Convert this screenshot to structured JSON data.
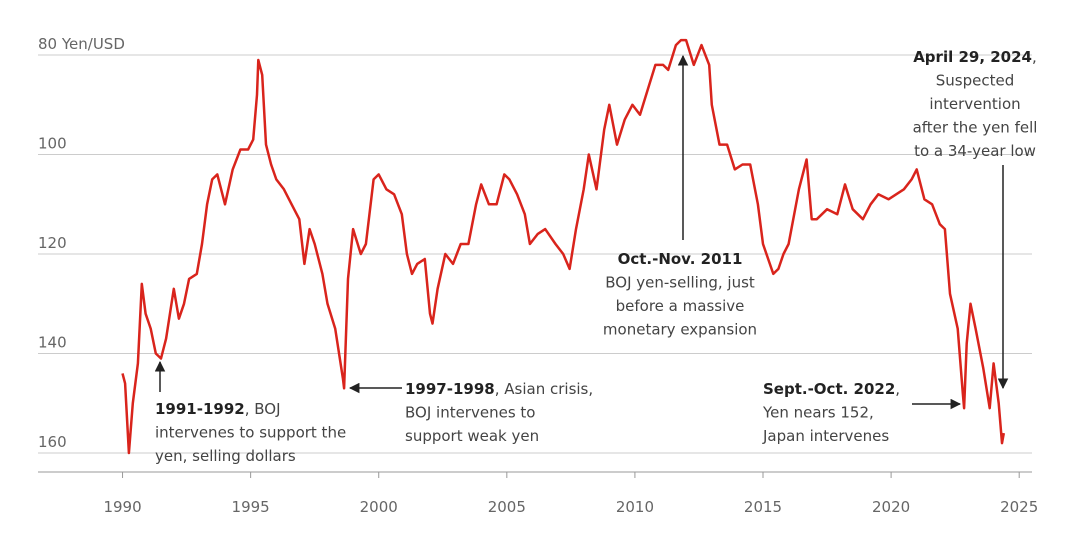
{
  "chart_data": {
    "type": "line",
    "color": "#d9241c",
    "ylim": [
      165,
      75
    ],
    "yticks": [
      {
        "value": 80,
        "label": "80 Yen/USD"
      },
      100,
      120,
      140,
      160
    ],
    "xlim": [
      1986.7,
      2025.5
    ],
    "xticks": [
      1990,
      1995,
      2000,
      2005,
      2010,
      2015,
      2020,
      2025
    ],
    "grid": true,
    "x": [
      1990.0,
      1990.1,
      1990.25,
      1990.4,
      1990.6,
      1990.75,
      1990.9,
      1991.1,
      1991.3,
      1991.5,
      1991.7,
      1992.0,
      1992.2,
      1992.4,
      1992.6,
      1992.9,
      1993.1,
      1993.3,
      1993.5,
      1993.7,
      1994.0,
      1994.3,
      1994.6,
      1994.9,
      1995.1,
      1995.25,
      1995.3,
      1995.45,
      1995.6,
      1995.8,
      1996.0,
      1996.3,
      1996.6,
      1996.9,
      1997.1,
      1997.3,
      1997.5,
      1997.8,
      1998.0,
      1998.3,
      1998.6,
      1998.65,
      1998.8,
      1999.0,
      1999.3,
      1999.5,
      1999.8,
      2000.0,
      2000.3,
      2000.6,
      2000.9,
      2001.1,
      2001.3,
      2001.5,
      2001.8,
      2002.0,
      2002.1,
      2002.3,
      2002.6,
      2002.9,
      2003.2,
      2003.5,
      2003.8,
      2004.0,
      2004.3,
      2004.6,
      2004.9,
      2005.1,
      2005.4,
      2005.7,
      2005.9,
      2006.2,
      2006.5,
      2006.9,
      2007.2,
      2007.45,
      2007.7,
      2008.0,
      2008.2,
      2008.5,
      2008.8,
      2009.0,
      2009.3,
      2009.6,
      2009.9,
      2010.2,
      2010.5,
      2010.8,
      2011.1,
      2011.3,
      2011.6,
      2011.8,
      2012.0,
      2012.3,
      2012.6,
      2012.9,
      2013.0,
      2013.3,
      2013.6,
      2013.9,
      2014.2,
      2014.5,
      2014.8,
      2015.0,
      2015.4,
      2015.6,
      2015.8,
      2016.0,
      2016.4,
      2016.7,
      2016.9,
      2017.1,
      2017.5,
      2017.9,
      2018.2,
      2018.5,
      2018.9,
      2019.2,
      2019.5,
      2019.9,
      2020.2,
      2020.5,
      2020.8,
      2021.0,
      2021.3,
      2021.6,
      2021.9,
      2022.1,
      2022.3,
      2022.6,
      2022.8,
      2022.85,
      2022.95,
      2023.1,
      2023.3,
      2023.6,
      2023.85,
      2024.0,
      2024.2,
      2024.33,
      2024.4
    ],
    "values": [
      144,
      146,
      160,
      150,
      142,
      126,
      132,
      135,
      140,
      141,
      137,
      127,
      133,
      130,
      125,
      124,
      118,
      110,
      105,
      104,
      110,
      103,
      99,
      99,
      97,
      88,
      81,
      84,
      98,
      102,
      105,
      107,
      110,
      113,
      122,
      115,
      118,
      124,
      130,
      135,
      145,
      147,
      125,
      115,
      120,
      118,
      105,
      104,
      107,
      108,
      112,
      120,
      124,
      122,
      121,
      132,
      134,
      127,
      120,
      122,
      118,
      118,
      110,
      106,
      110,
      110,
      104,
      105,
      108,
      112,
      118,
      116,
      115,
      118,
      120,
      123,
      115,
      107,
      100,
      107,
      95,
      90,
      98,
      93,
      90,
      92,
      87,
      82,
      82,
      83,
      78,
      77,
      77,
      82,
      78,
      82,
      90,
      98,
      98,
      103,
      102,
      102,
      110,
      118,
      124,
      123,
      120,
      118,
      107,
      101,
      113,
      113,
      111,
      112,
      106,
      111,
      113,
      110,
      108,
      109,
      108,
      107,
      105,
      103,
      109,
      110,
      114,
      115,
      128,
      135,
      148,
      151,
      138,
      130,
      135,
      143,
      151,
      142,
      150,
      158,
      156
    ],
    "annotations": [
      {
        "title": "1991-1992",
        "lines": [
          ", BOJ",
          "intervenes to support the",
          "yen, selling dollars"
        ]
      },
      {
        "title": "1997-1998",
        "lines": [
          ", Asian crisis,",
          "BOJ intervenes to",
          "support weak yen"
        ]
      },
      {
        "title": "Oct.-Nov. 2011",
        "lines": [
          "BOJ yen-selling, just",
          "before a massive",
          "monetary expansion"
        ]
      },
      {
        "title": "Sept.-Oct. 2022",
        "lines": [
          ",",
          "Yen nears 152,",
          "Japan intervenes"
        ]
      },
      {
        "title": "April 29, 2024",
        "lines": [
          ",",
          "Suspected",
          "intervention",
          "after the yen fell",
          "to a 34-year low"
        ]
      }
    ]
  }
}
